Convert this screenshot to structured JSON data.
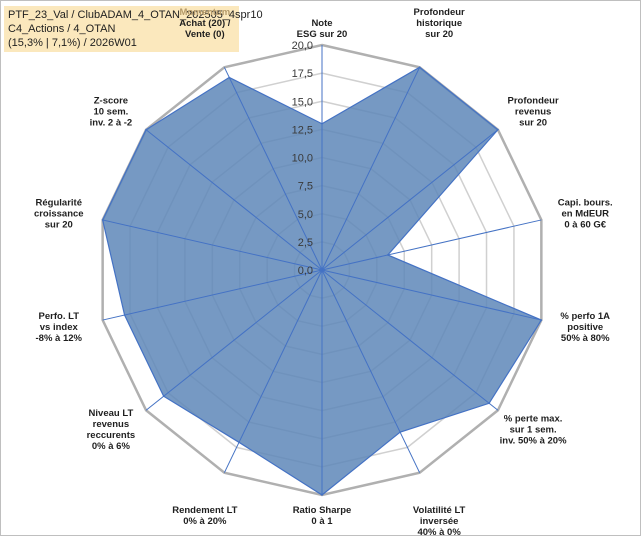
{
  "header": {
    "line1": "PTF_23_Val / ClubADAM_4_OTAN_202505_4spr10",
    "line2": "C4_Actions / 4_OTAN",
    "line3": "(15,3% | 7,1%) / 2026W01"
  },
  "chart_data": {
    "type": "radar",
    "rlim": [
      0,
      20
    ],
    "grid": true,
    "ticks": [
      "0,0",
      "2,5",
      "5,0",
      "7,5",
      "10,0",
      "12,5",
      "15,0",
      "17,5",
      "20,0"
    ],
    "tick_values": [
      0,
      2.5,
      5,
      7.5,
      10,
      12.5,
      15,
      17.5,
      20
    ],
    "categories": [
      [
        "Note",
        "ESG sur 20"
      ],
      [
        "Profondeur",
        "historique",
        "sur 20"
      ],
      [
        "Profondeur",
        "revenus",
        "sur 20"
      ],
      [
        "Capi. bours.",
        "en MdEUR",
        "0 à 60 G€"
      ],
      [
        "% perfo 1A",
        "positive",
        "50% à 80%"
      ],
      [
        "% perte max.",
        "sur 1 sem.",
        "inv. 50% à 20%"
      ],
      [
        "Volatilité LT",
        "inversée",
        "40% à 0%"
      ],
      [
        "Ratio Sharpe",
        "0 à 1"
      ],
      [
        "Rendement LT",
        "0% à 20%"
      ],
      [
        "Niveau LT",
        "revenus",
        "reccurents",
        "0% à 6%"
      ],
      [
        "Perfo. LT",
        "vs index",
        "-8% à 12%"
      ],
      [
        "Régularité",
        "croissance",
        "sur 20"
      ],
      [
        "Z-score",
        "10 sem.",
        "inv. 2 à -2"
      ],
      [
        "Momentum",
        "Achat (20) /",
        "Vente (0)"
      ]
    ],
    "series": [
      {
        "values": [
          13,
          20,
          20,
          6,
          20,
          19,
          16,
          20,
          17,
          18,
          18,
          20,
          20,
          19
        ]
      }
    ],
    "colors": {
      "fill": "#5e87b8",
      "stroke": "#4472c4",
      "grid": "#d0d0d0",
      "outer": "#b0b0b0"
    }
  }
}
